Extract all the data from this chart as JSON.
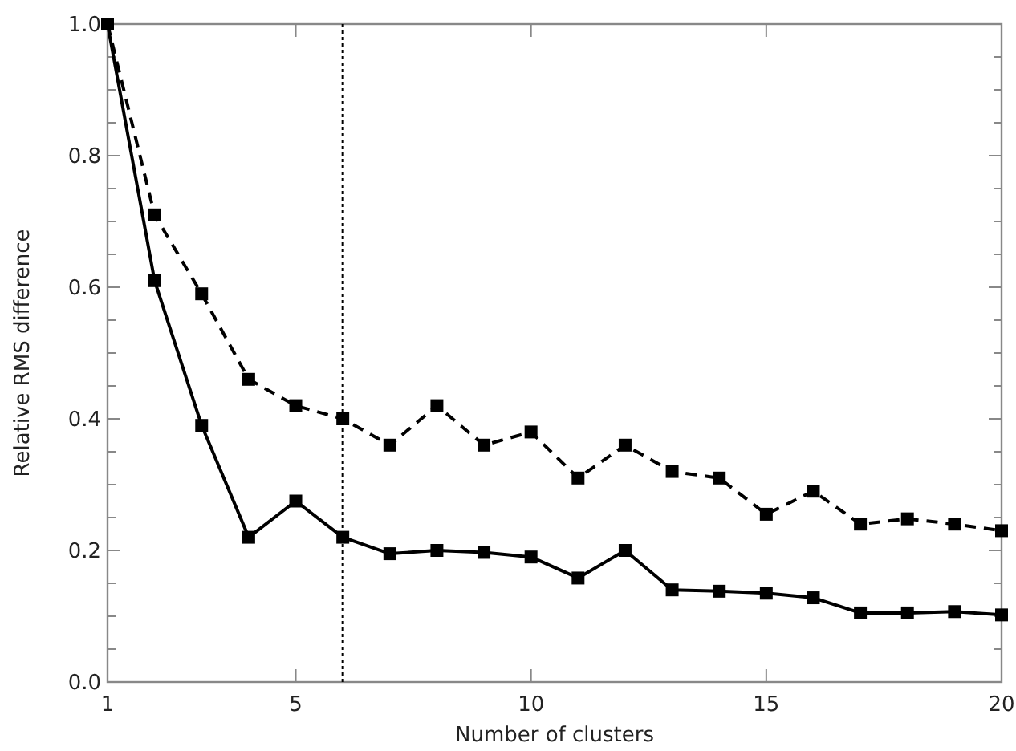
{
  "chart_data": {
    "type": "line",
    "xlabel": "Number of clusters",
    "ylabel": "Relative RMS difference",
    "x": [
      1,
      2,
      3,
      4,
      5,
      6,
      7,
      8,
      9,
      10,
      11,
      12,
      13,
      14,
      15,
      16,
      17,
      18,
      19,
      20
    ],
    "xlim": [
      1,
      20
    ],
    "xticks": [
      1,
      5,
      10,
      15,
      20
    ],
    "ylim": [
      0,
      1
    ],
    "yticks": [
      {
        "value": 0,
        "label": "0.0"
      },
      {
        "value": 0.05,
        "label": null
      },
      {
        "value": 0.1,
        "label": null
      },
      {
        "value": 0.15,
        "label": null
      },
      0.2,
      {
        "value": 0.25,
        "label": null
      },
      {
        "value": 0.3,
        "label": null
      },
      {
        "value": 0.35,
        "label": null
      },
      0.4,
      {
        "value": 0.45,
        "label": null
      },
      {
        "value": 0.5,
        "label": null
      },
      {
        "value": 0.55,
        "label": null
      },
      0.6,
      {
        "value": 0.65,
        "label": null
      },
      {
        "value": 0.7,
        "label": null
      },
      {
        "value": 0.75,
        "label": null
      },
      0.8,
      {
        "value": 0.85,
        "label": null
      },
      {
        "value": 0.9,
        "label": null
      },
      {
        "value": 0.95,
        "label": null
      },
      {
        "value": 1,
        "label": "1.0"
      }
    ],
    "grid": false,
    "marker": "square",
    "series": [
      {
        "color": "#000000",
        "line_style": "solid",
        "values": [
          1,
          0.61,
          0.39,
          0.22,
          0.275,
          0.22,
          0.195,
          0.2,
          0.197,
          0.19,
          0.158,
          0.2,
          0.14,
          0.138,
          0.135,
          0.128,
          0.105,
          0.105,
          0.107,
          0.102
        ]
      },
      {
        "color": "#000000",
        "line_style": "dashed",
        "values": [
          1,
          0.71,
          0.59,
          0.46,
          0.42,
          0.4,
          0.36,
          0.42,
          0.36,
          0.38,
          0.31,
          0.36,
          0.32,
          0.31,
          0.255,
          0.29,
          0.24,
          0.248,
          0.24,
          0.23
        ]
      }
    ],
    "ref_lines": [
      {
        "axis": "x",
        "value": 6,
        "line_style": "dotted",
        "color": "#000000"
      }
    ]
  }
}
